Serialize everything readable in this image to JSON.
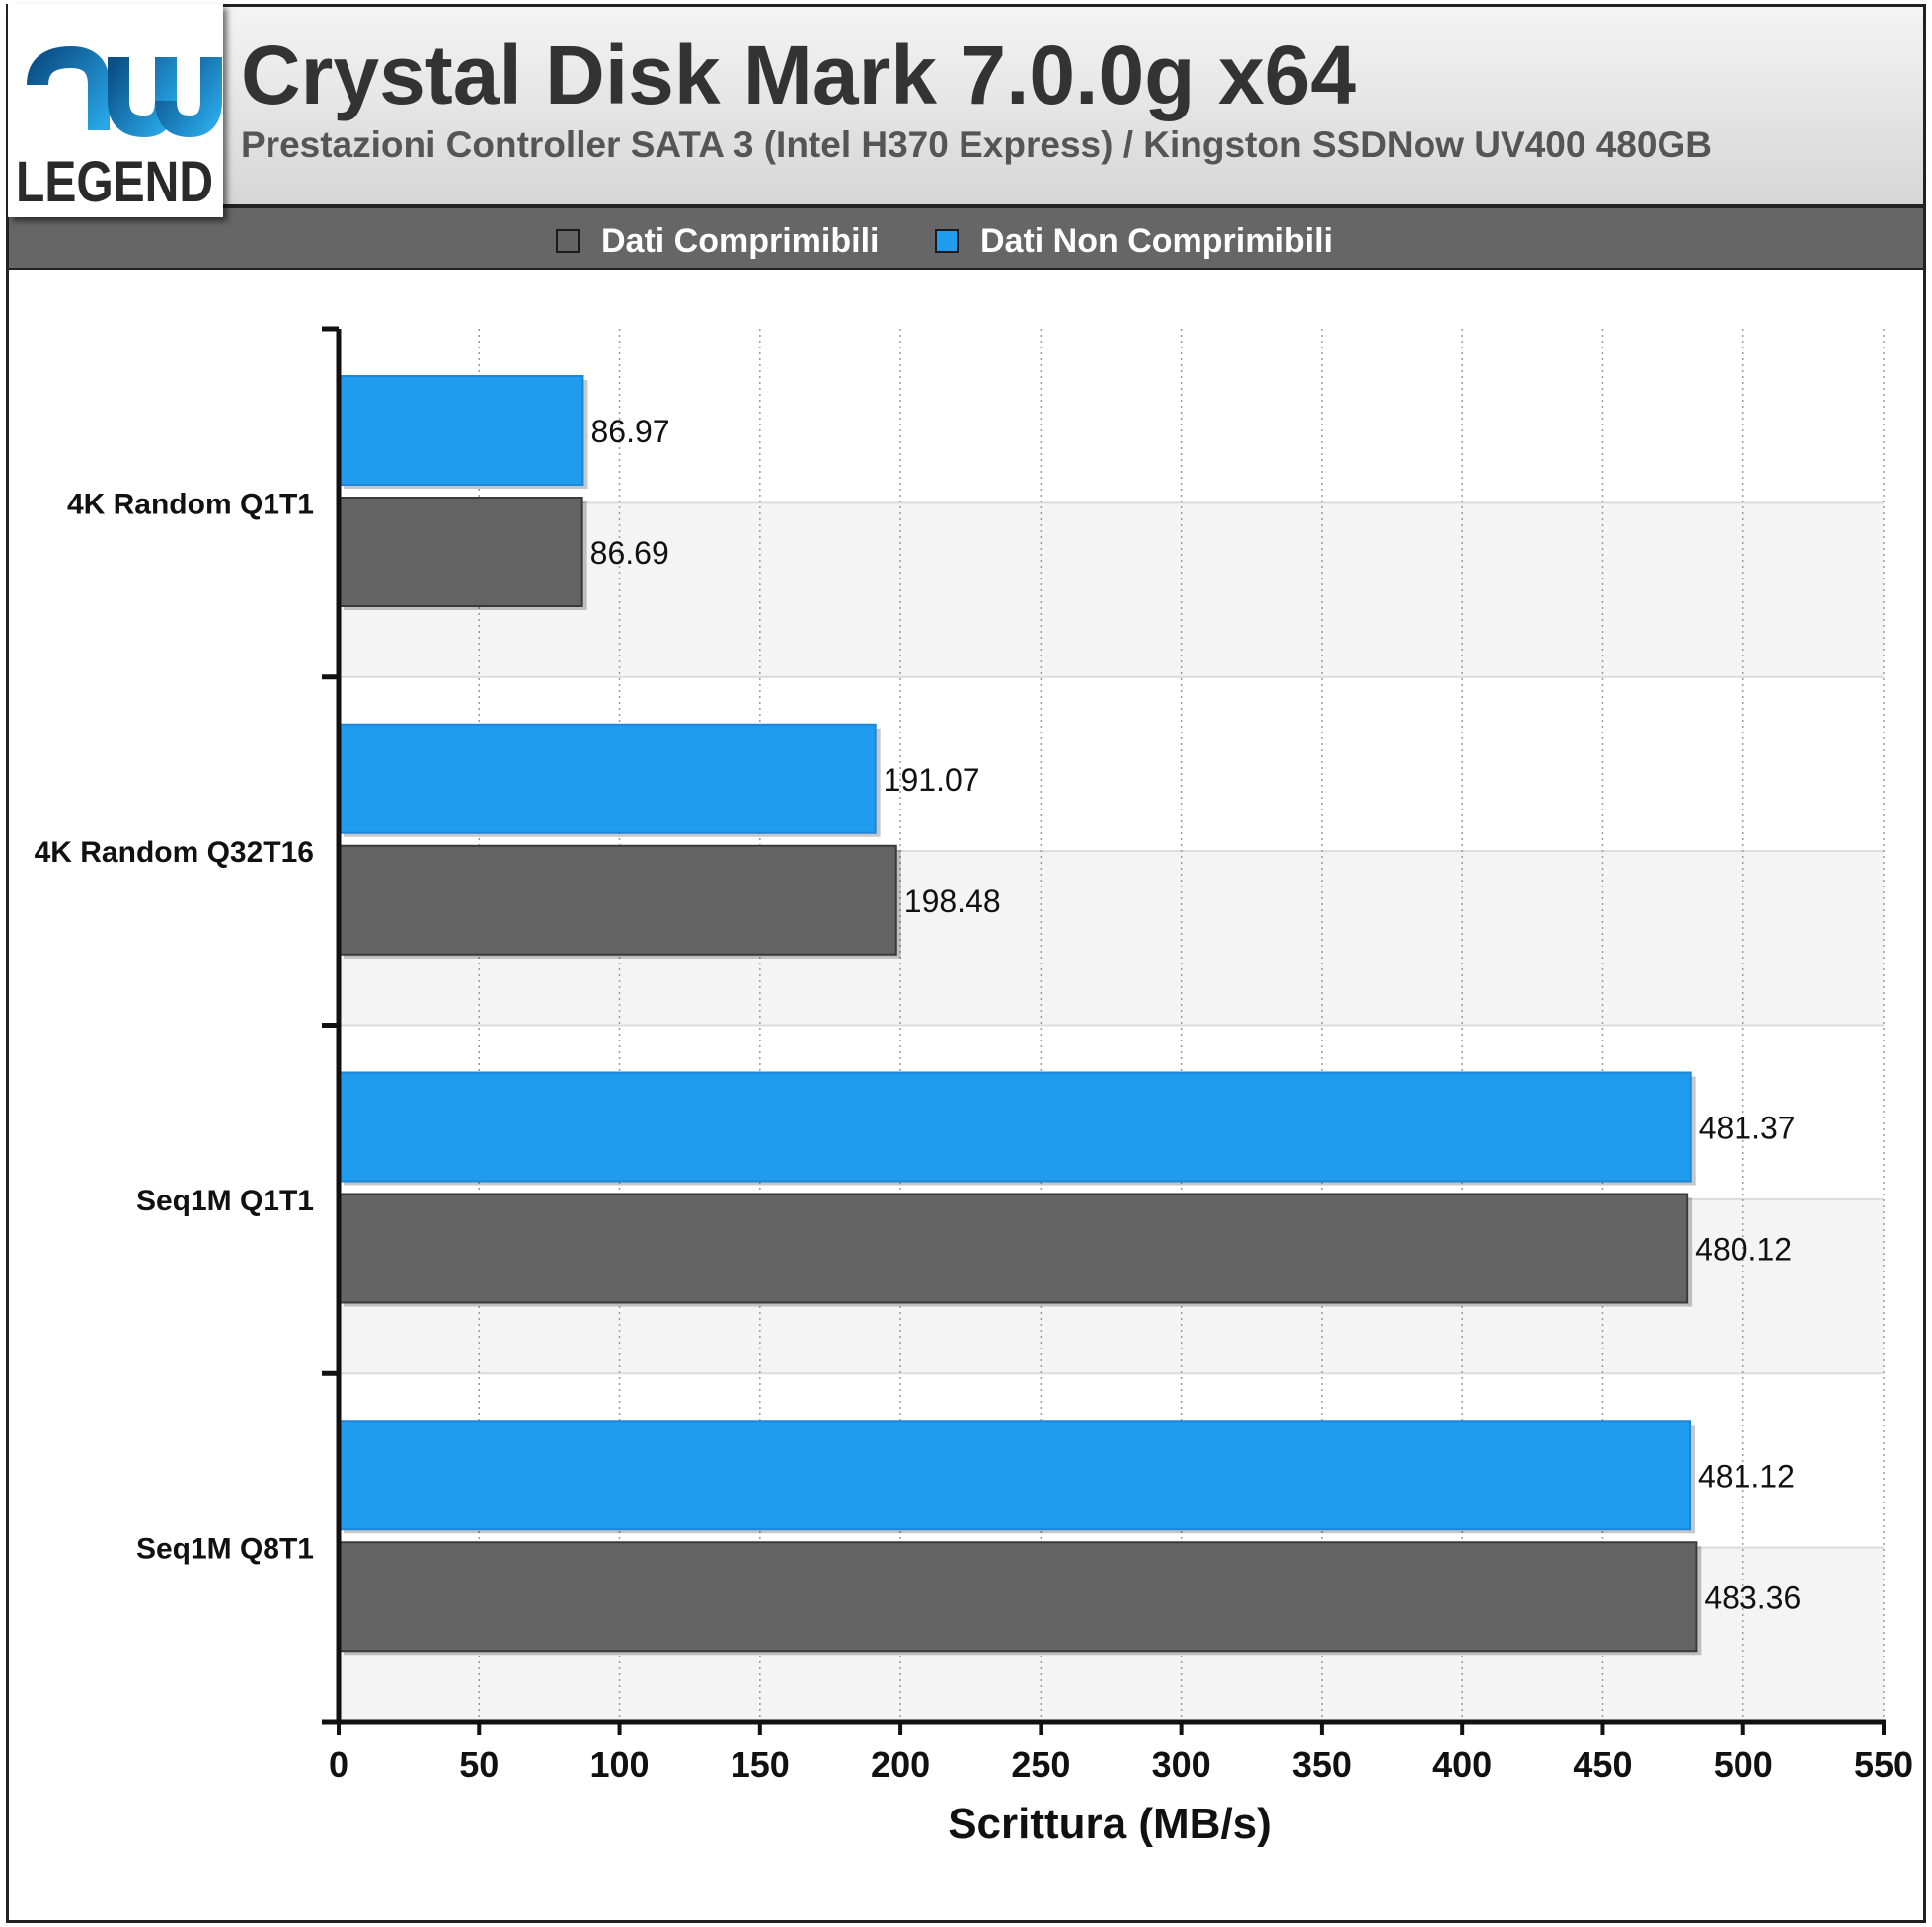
{
  "header": {
    "logo_top": "hw",
    "logo_bottom": "LEGEND",
    "title": "Crystal Disk Mark 7.0.0g x64",
    "subtitle": "Prestazioni Controller SATA 3 (Intel H370 Express) / Kingston SSDNow UV400 480GB"
  },
  "legend": [
    {
      "label": "Dati Comprimibili",
      "color": "#646464"
    },
    {
      "label": "Dati Non Comprimibili",
      "color": "#209cee"
    }
  ],
  "chart_data": {
    "type": "bar",
    "orientation": "horizontal",
    "categories": [
      "4K Random Q1T1",
      "4K Random Q32T16",
      "Seq1M Q1T1",
      "Seq1M Q8T1"
    ],
    "series": [
      {
        "name": "Dati Non Comprimibili",
        "color": "#209cee",
        "values": [
          86.97,
          191.07,
          481.37,
          481.12
        ],
        "labels": [
          "86.97",
          "191.07",
          "481.37",
          "481.12"
        ]
      },
      {
        "name": "Dati Comprimibili",
        "color": "#646464",
        "values": [
          86.69,
          198.48,
          480.12,
          483.36
        ],
        "labels": [
          "86.69",
          "198.48",
          "480.12",
          "483.36"
        ]
      }
    ],
    "xlabel": "Scrittura (MB/s)",
    "ylabel": "",
    "xlim": [
      0,
      550
    ],
    "xticks": [
      "0",
      "50",
      "100",
      "150",
      "200",
      "250",
      "300",
      "350",
      "400",
      "450",
      "500",
      "550"
    ],
    "grid": true,
    "legend_position": "top"
  }
}
